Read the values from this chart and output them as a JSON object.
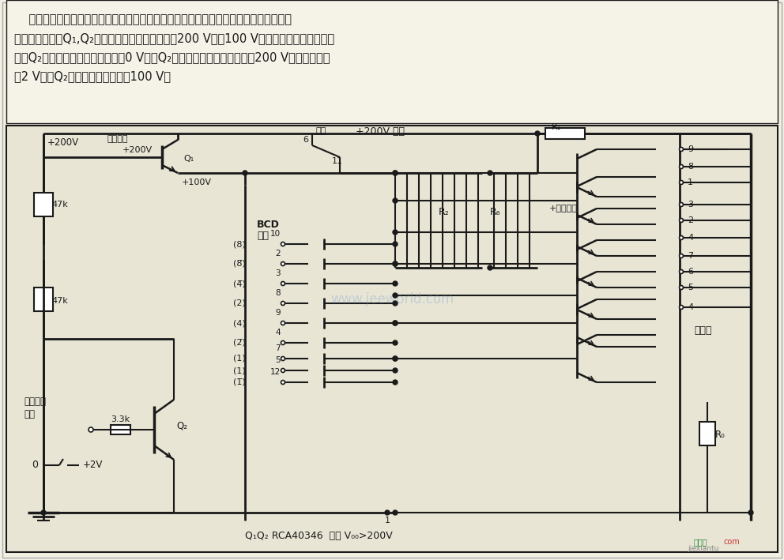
{
  "bg_color": "#f2efe3",
  "desc_bg": "#f5f2e8",
  "circuit_bg": "#e8e5d5",
  "lc": "#1a1a1a",
  "tc": "#1a1a1a",
  "watermark_text": "www.jeeworld.com",
  "watermark_color": "#5599cc",
  "bottom_text": "Q₁Q₂ RCA40346  选择 V₀₀>200V",
  "brand1_text": "桃豆图",
  "brand2_text": "com",
  "brand3_text": "jiexiantu",
  "desc_lines": [
    "    在多数字显示器中，为了强调某些数字，给此电路外加一个息灬信号以使数码管亮或变",
    "暗。其原理是用Q₁,Q₂把数码管阴极电压从正常值200 V降到100 V，使数码管变暗。控制信",
    "号由Q₂的基极输入。当灬灬信号为0 V时，Q₂截止，数码管的阴极电压为200 V。当灬灬信号",
    "为2 V时，Q₂导通，阴极电压降到100 V。"
  ]
}
